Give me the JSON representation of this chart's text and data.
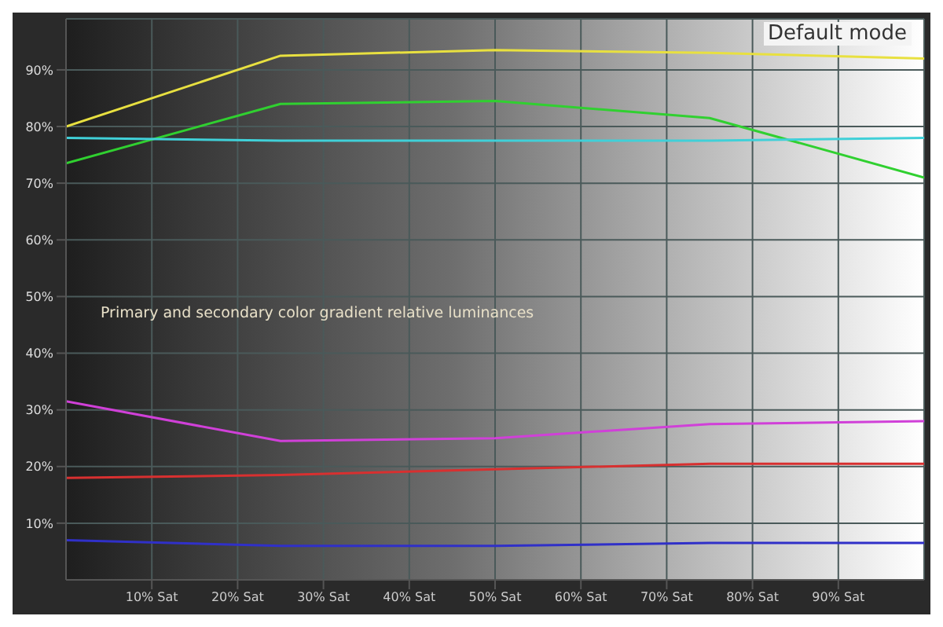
{
  "chart_data": {
    "type": "line",
    "title": "Default mode",
    "annotations": [
      "Primary and secondary color gradient relative luminances"
    ],
    "x": [
      0,
      25,
      50,
      75,
      100
    ],
    "series": [
      {
        "color": "#e8e040",
        "values": [
          80,
          92.5,
          93.5,
          93,
          92
        ]
      },
      {
        "color": "#30d030",
        "values": [
          73.5,
          84,
          84.5,
          81.5,
          71
        ]
      },
      {
        "color": "#40d0d8",
        "values": [
          78,
          77.5,
          77.5,
          77.5,
          78
        ]
      },
      {
        "color": "#d040d8",
        "values": [
          31.5,
          24.5,
          25,
          27.5,
          28
        ]
      },
      {
        "color": "#d83030",
        "values": [
          18,
          18.5,
          19.5,
          20.5,
          20.5
        ]
      },
      {
        "color": "#3030c8",
        "values": [
          7,
          6,
          6,
          6.5,
          6.5
        ]
      }
    ],
    "xlim": [
      0,
      100
    ],
    "xticks": [
      {
        "value": 10,
        "label": "10% Sat"
      },
      {
        "value": 20,
        "label": "20% Sat"
      },
      {
        "value": 30,
        "label": "30% Sat"
      },
      {
        "value": 40,
        "label": "40% Sat"
      },
      {
        "value": 50,
        "label": "50% Sat"
      },
      {
        "value": 60,
        "label": "60% Sat"
      },
      {
        "value": 70,
        "label": "70% Sat"
      },
      {
        "value": 80,
        "label": "80% Sat"
      },
      {
        "value": 90,
        "label": "90% Sat"
      }
    ],
    "ylim": [
      0,
      99
    ],
    "yticks": [
      {
        "value": 10,
        "label": "10%"
      },
      {
        "value": 20,
        "label": "20%"
      },
      {
        "value": 30,
        "label": "30%"
      },
      {
        "value": 40,
        "label": "40%"
      },
      {
        "value": 50,
        "label": "50%"
      },
      {
        "value": 60,
        "label": "60%"
      },
      {
        "value": 70,
        "label": "70%"
      },
      {
        "value": 80,
        "label": "80%"
      },
      {
        "value": 90,
        "label": "90%"
      }
    ],
    "grid": true,
    "marker": "none",
    "line_style": "solid"
  }
}
